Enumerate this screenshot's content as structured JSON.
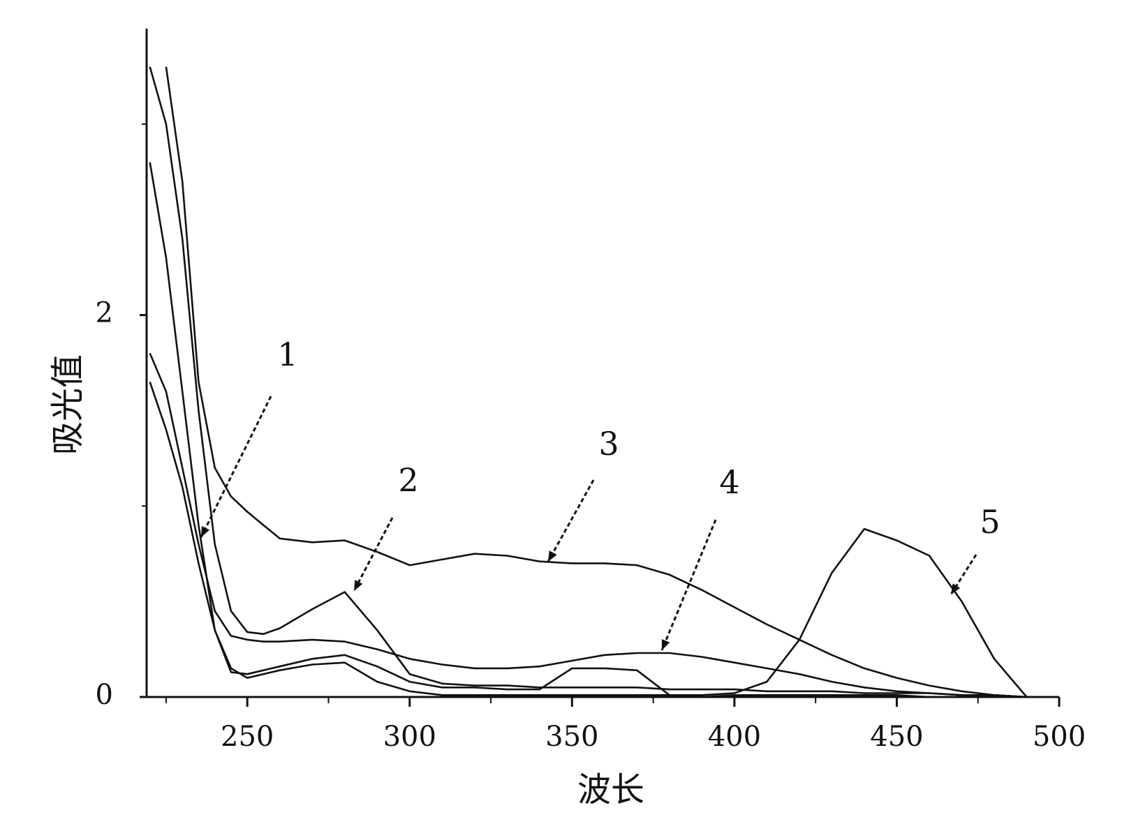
{
  "chart_data": {
    "type": "line",
    "x_label": "波长",
    "y_label": "吸光值",
    "xlim": [
      219,
      500
    ],
    "ylim": [
      0,
      3.5
    ],
    "xticks": [
      250,
      300,
      350,
      400,
      450,
      500
    ],
    "xticks_minor": [
      225,
      275,
      325,
      375,
      425,
      475
    ],
    "yticks": [
      0,
      2
    ],
    "yticks_minor": [
      1,
      3
    ],
    "x": [
      220,
      225,
      230,
      235,
      240,
      245,
      250,
      255,
      260,
      270,
      280,
      290,
      300,
      310,
      320,
      330,
      340,
      350,
      360,
      370,
      380,
      390,
      400,
      410,
      420,
      430,
      440,
      450,
      460,
      470,
      480,
      490,
      500
    ],
    "series": [
      {
        "color": "#111111",
        "values": [
          2.8,
          2.3,
          1.6,
          0.9,
          0.35,
          0.13,
          0.12,
          0.14,
          0.16,
          0.2,
          0.22,
          0.16,
          0.08,
          0.05,
          0.05,
          0.04,
          0.04,
          0.15,
          0.15,
          0.14,
          0.01,
          0.0,
          0.01,
          0.01,
          0.01,
          0.01,
          0.01,
          0.01,
          0.0,
          0.0,
          0.0,
          0.0,
          null
        ]
      },
      {
        "color": "#111111",
        "values": [
          3.3,
          3.0,
          2.4,
          1.5,
          0.8,
          0.45,
          0.34,
          0.33,
          0.36,
          0.46,
          0.55,
          0.35,
          0.12,
          0.07,
          0.06,
          0.06,
          0.05,
          0.05,
          0.05,
          0.05,
          0.04,
          0.04,
          0.04,
          0.03,
          0.03,
          0.03,
          0.02,
          0.02,
          0.02,
          0.01,
          0.01,
          0.0,
          null
        ]
      },
      {
        "color": "#111111",
        "values": [
          null,
          3.3,
          2.7,
          1.65,
          1.2,
          1.05,
          0.97,
          0.9,
          0.83,
          0.81,
          0.82,
          0.76,
          0.69,
          0.72,
          0.75,
          0.74,
          0.71,
          0.7,
          0.7,
          0.69,
          0.64,
          0.56,
          0.47,
          0.38,
          0.3,
          0.22,
          0.15,
          0.1,
          0.06,
          0.03,
          0.01,
          0.0,
          null
        ]
      },
      {
        "color": "#111111",
        "values": [
          1.8,
          1.6,
          1.2,
          0.8,
          0.45,
          0.32,
          0.3,
          0.29,
          0.29,
          0.3,
          0.29,
          0.25,
          0.2,
          0.17,
          0.15,
          0.15,
          0.16,
          0.19,
          0.22,
          0.23,
          0.23,
          0.21,
          0.18,
          0.15,
          0.12,
          0.08,
          0.05,
          0.03,
          0.02,
          0.01,
          0.01,
          0.0,
          null
        ]
      },
      {
        "color": "#111111",
        "values": [
          1.65,
          1.4,
          1.1,
          0.7,
          0.35,
          0.15,
          0.1,
          0.12,
          0.14,
          0.17,
          0.18,
          0.08,
          0.03,
          0.01,
          0.01,
          0.01,
          0.01,
          0.01,
          0.01,
          0.01,
          0.01,
          0.01,
          0.02,
          0.08,
          0.3,
          0.65,
          0.88,
          0.82,
          0.74,
          0.5,
          0.2,
          0.0,
          null
        ]
      }
    ],
    "annotations": [
      "1",
      "2",
      "3",
      "4",
      "5"
    ]
  }
}
